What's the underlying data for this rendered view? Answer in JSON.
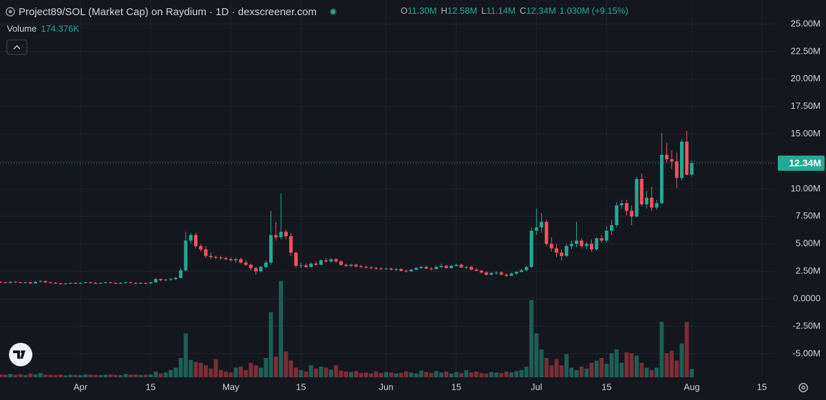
{
  "chart_data": {
    "type": "candlestick",
    "title": "Project89/SOL (Market Cap) on Raydium · 1D · dexscreener.com",
    "ohlc_legend": [
      {
        "key": "O",
        "text": "11.30M"
      },
      {
        "key": "H",
        "text": "12.58M"
      },
      {
        "key": "L",
        "text": "11.14M"
      },
      {
        "key": "C",
        "text": "12.34M"
      }
    ],
    "change": "1.030M (+9.15%)",
    "volume_title": "Volume",
    "volume_label": "174.376K",
    "up_color": "#22ab94",
    "down_color": "#f7525f",
    "volume_up_color": "#1d5f56",
    "volume_down_color": "#7b2d37",
    "grid": true,
    "ylim": [
      -7.14,
      27.19
    ],
    "yticks": [
      {
        "value": 25,
        "label": "25.00M"
      },
      {
        "value": 22.5,
        "label": "22.50M"
      },
      {
        "value": 20,
        "label": "20.00M"
      },
      {
        "value": 17.5,
        "label": "17.50M"
      },
      {
        "value": 15,
        "label": "15.00M"
      },
      {
        "value": 12.5,
        "label": "12.50M"
      },
      {
        "value": 10,
        "label": "10.00M"
      },
      {
        "value": 7.5,
        "label": "7.50M"
      },
      {
        "value": 5,
        "label": "5.00M"
      },
      {
        "value": 2.5,
        "label": "2.50M"
      },
      {
        "value": 0,
        "label": "0.0000"
      },
      {
        "value": -2.5,
        "label": "-2.50M"
      },
      {
        "value": -5,
        "label": "-5.00M"
      }
    ],
    "volume_lim": [
      0,
      2500
    ],
    "last_price": {
      "value": 12.34,
      "label": "12.34M"
    },
    "categories": [
      null,
      null,
      null,
      null,
      null,
      null,
      null,
      null,
      null,
      null,
      null,
      null,
      null,
      null,
      null,
      null,
      "Apr",
      null,
      null,
      null,
      null,
      null,
      null,
      null,
      null,
      null,
      null,
      null,
      null,
      null,
      "15",
      null,
      null,
      null,
      null,
      null,
      null,
      null,
      null,
      null,
      null,
      null,
      null,
      null,
      null,
      null,
      "May",
      null,
      null,
      null,
      null,
      null,
      null,
      null,
      null,
      null,
      null,
      null,
      null,
      null,
      "15",
      null,
      null,
      null,
      null,
      null,
      null,
      null,
      null,
      null,
      null,
      null,
      null,
      null,
      null,
      null,
      null,
      "Jun",
      null,
      null,
      null,
      null,
      null,
      null,
      null,
      null,
      null,
      null,
      null,
      null,
      null,
      "15",
      null,
      null,
      null,
      null,
      null,
      null,
      null,
      null,
      null,
      null,
      null,
      null,
      null,
      null,
      null,
      "Jul",
      null,
      null,
      null,
      null,
      null,
      null,
      null,
      null,
      null,
      null,
      null,
      null,
      null,
      "15",
      null,
      null,
      null,
      null,
      null,
      null,
      null,
      null,
      null,
      null,
      null,
      null,
      null,
      null,
      null,
      null,
      "Aug",
      null,
      null,
      null,
      null,
      null,
      null,
      null,
      null,
      null,
      null,
      null,
      null,
      null,
      "15",
      null,
      null
    ],
    "open": [
      1.55,
      1.5,
      1.45,
      1.55,
      1.5,
      1.45,
      1.5,
      1.4,
      1.55,
      1.6,
      1.5,
      1.45,
      1.4,
      1.35,
      1.4,
      1.45,
      1.4,
      1.45,
      1.5,
      1.45,
      1.4,
      1.45,
      1.5,
      1.45,
      1.4,
      1.45,
      1.5,
      1.45,
      1.4,
      1.45,
      1.4,
      1.5,
      1.8,
      1.7,
      1.75,
      1.8,
      1.9,
      2.6,
      5.3,
      5.8,
      4.8,
      4.5,
      3.9,
      3.8,
      3.75,
      3.7,
      3.6,
      3.5,
      3.6,
      3.3,
      3.1,
      2.8,
      2.5,
      2.9,
      3.3,
      5.8,
      5.6,
      6.1,
      5.7,
      4.2,
      3.0,
      3.05,
      2.9,
      3.2,
      3.1,
      3.5,
      3.4,
      3.6,
      3.4,
      3.1,
      3.0,
      3.1,
      2.95,
      2.9,
      2.85,
      2.8,
      2.75,
      2.7,
      2.75,
      2.65,
      2.7,
      2.55,
      2.5,
      2.65,
      2.8,
      2.9,
      2.75,
      2.7,
      2.9,
      3.0,
      2.8,
      3.0,
      3.1,
      2.85,
      2.9,
      2.65,
      2.55,
      2.4,
      2.2,
      2.35,
      2.4,
      2.2,
      2.1,
      2.3,
      2.45,
      2.6,
      2.9,
      6.2,
      6.5,
      7.0,
      5.0,
      4.6,
      4.2,
      3.9,
      4.8,
      5.0,
      5.3,
      4.8,
      5.0,
      4.5,
      5.5,
      5.3,
      6.2,
      6.7,
      8.5,
      8.7,
      8.0,
      7.5,
      10.9,
      8.6,
      9.2,
      8.3,
      8.7,
      13.1,
      12.7,
      12.5,
      11.0,
      14.3,
      11.3,
      null,
      null,
      null,
      null,
      null,
      null,
      null,
      null,
      null,
      null,
      null,
      null,
      null,
      null,
      null,
      null
    ],
    "high": [
      1.6,
      1.55,
      1.6,
      1.6,
      1.55,
      1.55,
      1.55,
      1.6,
      1.7,
      1.65,
      1.55,
      1.5,
      1.45,
      1.45,
      1.5,
      1.5,
      1.5,
      1.55,
      1.55,
      1.5,
      1.5,
      1.55,
      1.55,
      1.5,
      1.5,
      1.55,
      1.55,
      1.5,
      1.5,
      1.5,
      1.55,
      1.9,
      1.85,
      1.8,
      1.9,
      2.0,
      2.8,
      6.1,
      6.0,
      6.0,
      5.0,
      4.8,
      4.2,
      3.95,
      3.9,
      3.85,
      3.8,
      3.7,
      3.75,
      3.5,
      3.2,
      2.9,
      3.0,
      3.5,
      8.0,
      7.0,
      9.6,
      6.3,
      6.0,
      4.3,
      3.3,
      3.2,
      3.3,
      3.4,
      3.6,
      3.7,
      3.7,
      3.7,
      3.5,
      3.2,
      3.2,
      3.2,
      3.1,
      3.05,
      2.95,
      2.9,
      2.9,
      2.85,
      2.85,
      2.8,
      2.8,
      2.65,
      2.7,
      2.9,
      3.0,
      3.0,
      2.9,
      3.0,
      3.2,
      3.1,
      3.1,
      3.2,
      3.2,
      3.0,
      3.0,
      2.8,
      2.65,
      2.5,
      2.4,
      2.5,
      2.5,
      2.3,
      2.4,
      2.5,
      2.7,
      3.0,
      6.5,
      8.2,
      7.8,
      7.2,
      5.6,
      5.0,
      4.5,
      5.0,
      5.3,
      7.0,
      5.5,
      5.2,
      5.4,
      5.6,
      5.8,
      6.6,
      7.2,
      8.8,
      9.0,
      9.0,
      8.5,
      11.1,
      11.4,
      9.8,
      10.2,
      9.0,
      15.1,
      14.2,
      13.5,
      13.3,
      14.5,
      15.3,
      12.58,
      null,
      null,
      null,
      null,
      null,
      null,
      null,
      null,
      null,
      null,
      null,
      null,
      null,
      null,
      null,
      null
    ],
    "low": [
      1.45,
      1.4,
      1.4,
      1.45,
      1.4,
      1.4,
      1.35,
      1.4,
      1.5,
      1.45,
      1.4,
      1.35,
      1.3,
      1.3,
      1.35,
      1.35,
      1.35,
      1.4,
      1.4,
      1.35,
      1.35,
      1.4,
      1.4,
      1.35,
      1.35,
      1.4,
      1.4,
      1.35,
      1.35,
      1.35,
      1.35,
      1.45,
      1.6,
      1.6,
      1.65,
      1.7,
      1.85,
      2.5,
      5.0,
      4.6,
      4.3,
      3.7,
      3.6,
      3.6,
      3.55,
      3.5,
      3.4,
      3.3,
      3.2,
      3.0,
      2.6,
      2.2,
      2.4,
      2.8,
      3.1,
      5.3,
      5.4,
      5.4,
      3.9,
      2.8,
      2.8,
      2.8,
      2.85,
      3.0,
      3.05,
      3.3,
      3.3,
      3.3,
      3.0,
      2.9,
      2.9,
      2.85,
      2.8,
      2.75,
      2.7,
      2.65,
      2.65,
      2.6,
      2.6,
      2.55,
      2.5,
      2.4,
      2.45,
      2.6,
      2.7,
      2.7,
      2.6,
      2.65,
      2.8,
      2.75,
      2.75,
      2.9,
      2.8,
      2.7,
      2.6,
      2.5,
      2.3,
      2.1,
      2.1,
      2.2,
      2.15,
      2.0,
      2.05,
      2.2,
      2.4,
      2.5,
      2.8,
      5.8,
      6.0,
      4.8,
      4.3,
      3.8,
      3.5,
      3.8,
      4.5,
      4.7,
      4.6,
      4.5,
      4.3,
      4.4,
      5.1,
      5.1,
      5.8,
      6.5,
      8.2,
      7.6,
      6.7,
      7.4,
      8.4,
      8.2,
      8.0,
      8.1,
      8.6,
      12.4,
      11.8,
      10.1,
      10.8,
      11.2,
      11.14,
      null,
      null,
      null,
      null,
      null,
      null,
      null,
      null,
      null,
      null,
      null,
      null,
      null,
      null,
      null,
      null
    ],
    "close": [
      1.5,
      1.45,
      1.55,
      1.5,
      1.45,
      1.5,
      1.4,
      1.55,
      1.6,
      1.5,
      1.45,
      1.4,
      1.35,
      1.4,
      1.45,
      1.4,
      1.45,
      1.5,
      1.45,
      1.4,
      1.45,
      1.5,
      1.45,
      1.4,
      1.45,
      1.5,
      1.45,
      1.4,
      1.45,
      1.4,
      1.5,
      1.8,
      1.7,
      1.75,
      1.8,
      1.9,
      2.6,
      5.3,
      5.8,
      4.8,
      4.5,
      3.9,
      3.8,
      3.75,
      3.7,
      3.6,
      3.5,
      3.6,
      3.3,
      3.1,
      2.8,
      2.5,
      2.9,
      3.3,
      5.8,
      5.6,
      6.1,
      5.7,
      4.2,
      3.0,
      3.05,
      2.9,
      3.2,
      3.1,
      3.5,
      3.4,
      3.6,
      3.4,
      3.1,
      3.0,
      3.1,
      2.95,
      2.9,
      2.85,
      2.8,
      2.75,
      2.7,
      2.75,
      2.65,
      2.7,
      2.55,
      2.5,
      2.65,
      2.8,
      2.9,
      2.75,
      2.7,
      2.9,
      3.0,
      2.8,
      3.0,
      3.1,
      2.85,
      2.9,
      2.65,
      2.55,
      2.4,
      2.2,
      2.35,
      2.4,
      2.2,
      2.1,
      2.3,
      2.45,
      2.6,
      2.9,
      6.2,
      6.5,
      7.0,
      5.0,
      4.6,
      4.2,
      3.9,
      4.8,
      5.0,
      5.3,
      4.8,
      5.0,
      4.5,
      5.5,
      5.3,
      6.2,
      6.7,
      8.5,
      8.7,
      8.0,
      7.5,
      10.9,
      8.6,
      9.2,
      8.3,
      8.7,
      13.1,
      12.7,
      12.5,
      11.0,
      14.3,
      11.3,
      12.34,
      null,
      null,
      null,
      null,
      null,
      null,
      null,
      null,
      null,
      null,
      null,
      null,
      null,
      null,
      null,
      null
    ],
    "volume": [
      60,
      55,
      70,
      50,
      65,
      45,
      80,
      60,
      90,
      55,
      50,
      45,
      60,
      40,
      55,
      50,
      45,
      60,
      55,
      50,
      45,
      55,
      60,
      50,
      45,
      70,
      55,
      60,
      50,
      55,
      60,
      120,
      80,
      100,
      150,
      200,
      400,
      910,
      360,
      320,
      300,
      250,
      180,
      375,
      150,
      120,
      100,
      200,
      220,
      150,
      300,
      250,
      200,
      400,
      1350,
      430,
      2000,
      535,
      350,
      200,
      150,
      120,
      250,
      180,
      220,
      200,
      160,
      250,
      140,
      120,
      110,
      130,
      90,
      100,
      80,
      120,
      90,
      110,
      100,
      80,
      90,
      120,
      100,
      80,
      140,
      110,
      90,
      130,
      100,
      120,
      80,
      110,
      90,
      150,
      100,
      120,
      90,
      80,
      110,
      100,
      90,
      120,
      100,
      130,
      150,
      220,
      1600,
      910,
      580,
      400,
      250,
      380,
      250,
      480,
      200,
      150,
      220,
      180,
      300,
      350,
      400,
      280,
      500,
      580,
      300,
      520,
      500,
      450,
      300,
      200,
      150,
      200,
      1150,
      500,
      550,
      350,
      700,
      1150,
      174.376,
      null,
      null,
      null,
      null,
      null,
      null,
      null,
      null,
      null,
      null,
      null,
      null,
      null,
      null,
      null,
      null
    ]
  }
}
